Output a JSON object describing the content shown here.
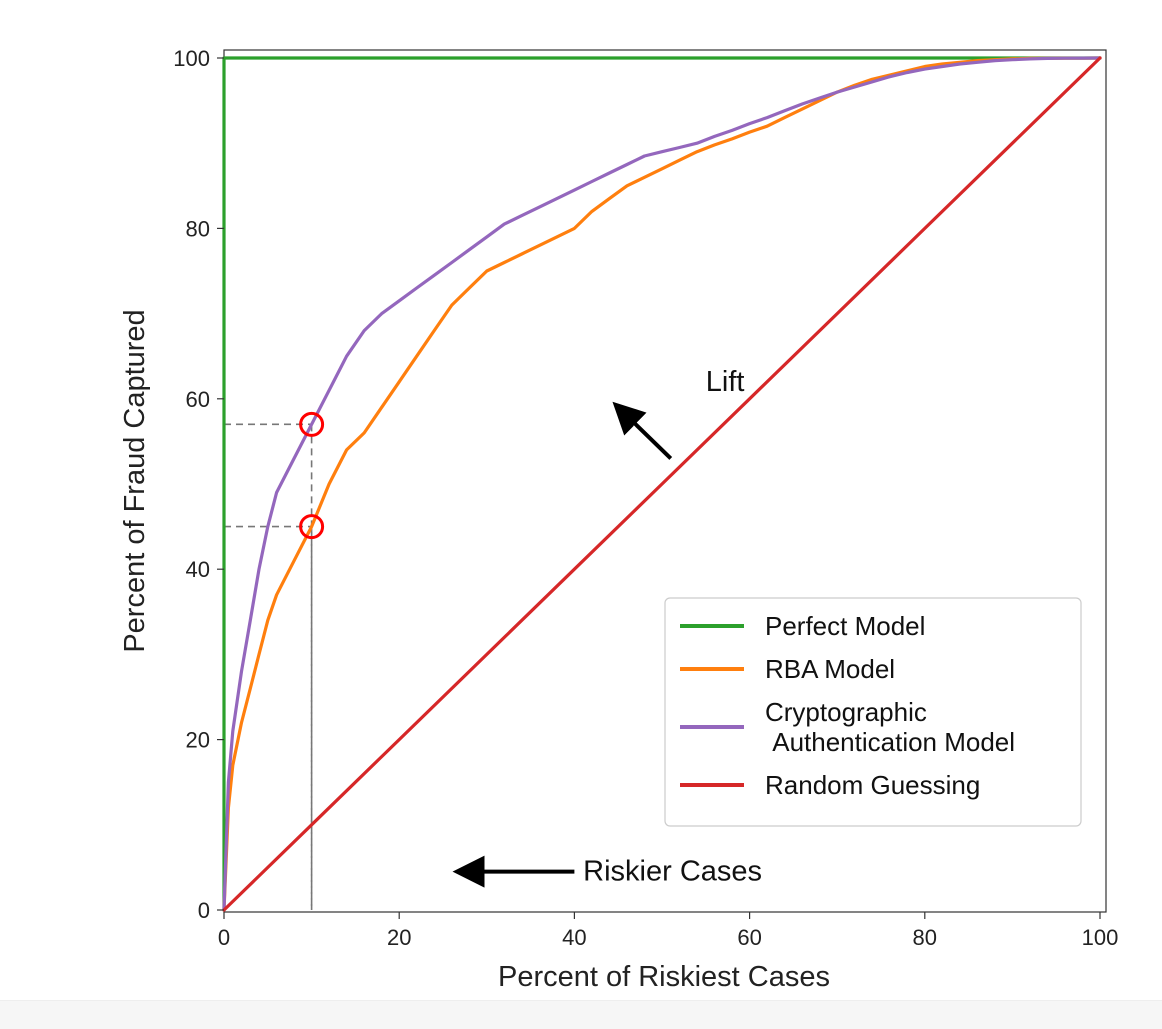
{
  "chart_data": {
    "type": "line",
    "xlabel": "Percent of Riskiest Cases",
    "ylabel": "Percent of Fraud Captured",
    "xlim": [
      0,
      100
    ],
    "ylim": [
      0,
      100
    ],
    "xticks": [
      0,
      20,
      40,
      60,
      80,
      100
    ],
    "yticks": [
      0,
      20,
      40,
      60,
      80,
      100
    ],
    "xtick_labels": [
      "0",
      "20",
      "40",
      "60",
      "80",
      "100"
    ],
    "ytick_labels": [
      "0",
      "20",
      "40",
      "60",
      "80",
      "100"
    ],
    "grid": false,
    "legend_position": "lower-right",
    "series": [
      {
        "name": "Perfect Model",
        "color": "#2ca02c",
        "x": [
          0,
          0,
          100
        ],
        "y": [
          0,
          100,
          100
        ]
      },
      {
        "name": "RBA Model",
        "color": "#ff7f0e",
        "x": [
          0,
          0.5,
          1,
          2,
          3,
          4,
          5,
          6,
          8,
          10,
          12,
          14,
          16,
          18,
          20,
          22,
          24,
          26,
          28,
          30,
          32,
          34,
          36,
          38,
          40,
          42,
          44,
          46,
          48,
          50,
          52,
          54,
          56,
          58,
          60,
          62,
          64,
          66,
          68,
          70,
          72,
          74,
          76,
          78,
          80,
          82,
          84,
          86,
          88,
          90,
          92,
          94,
          96,
          98,
          100
        ],
        "y": [
          0,
          12,
          17,
          22,
          26,
          30,
          34,
          37,
          41,
          45,
          50,
          54,
          56,
          59,
          62,
          65,
          68,
          71,
          73,
          75,
          76,
          77,
          78,
          79,
          80,
          82,
          83.5,
          85,
          86,
          87,
          88,
          89,
          89.8,
          90.5,
          91.3,
          92,
          93,
          94,
          95,
          96,
          96.8,
          97.5,
          98,
          98.5,
          99,
          99.3,
          99.5,
          99.7,
          99.8,
          99.9,
          99.95,
          99.97,
          99.98,
          99.99,
          100
        ]
      },
      {
        "name": "Cryptographic\n Authentication Model",
        "color": "#9467bd",
        "x": [
          0,
          0.5,
          1,
          2,
          3,
          4,
          5,
          6,
          8,
          10,
          12,
          14,
          16,
          18,
          20,
          22,
          24,
          26,
          28,
          30,
          32,
          34,
          36,
          38,
          40,
          42,
          44,
          46,
          48,
          50,
          52,
          54,
          56,
          58,
          60,
          62,
          64,
          66,
          68,
          70,
          72,
          74,
          76,
          78,
          80,
          82,
          84,
          86,
          88,
          90,
          92,
          94,
          96,
          98,
          100
        ],
        "y": [
          0,
          15,
          21,
          28,
          34,
          40,
          45,
          49,
          53,
          57,
          61,
          65,
          68,
          70,
          71.5,
          73,
          74.5,
          76,
          77.5,
          79,
          80.5,
          81.5,
          82.5,
          83.5,
          84.5,
          85.5,
          86.5,
          87.5,
          88.5,
          89,
          89.5,
          90,
          90.8,
          91.5,
          92.3,
          93,
          93.8,
          94.6,
          95.3,
          96,
          96.6,
          97.2,
          97.8,
          98.3,
          98.7,
          99,
          99.3,
          99.5,
          99.7,
          99.8,
          99.9,
          99.95,
          99.98,
          99.99,
          100
        ]
      },
      {
        "name": "Random Guessing",
        "color": "#d62728",
        "x": [
          0,
          10,
          20,
          30,
          40,
          50,
          60,
          70,
          80,
          90,
          100
        ],
        "y": [
          0,
          10,
          20,
          30,
          40,
          50,
          60,
          70,
          80,
          90,
          100
        ]
      }
    ],
    "reference_lines": [
      {
        "x": 10,
        "y": 57,
        "series": "Cryptographic Authentication Model"
      },
      {
        "x": 10,
        "y": 45,
        "series": "RBA Model"
      }
    ],
    "marker_color": "#ff0000",
    "annotations": [
      {
        "text": "Lift",
        "x": 55,
        "y": 62,
        "arrow_from": [
          51,
          53
        ],
        "arrow_to": [
          45,
          59
        ]
      },
      {
        "text": "Riskier Cases",
        "x": 41,
        "y": 4.5,
        "arrow_from": [
          40,
          4.5
        ],
        "arrow_to": [
          27,
          4.5
        ]
      }
    ]
  }
}
